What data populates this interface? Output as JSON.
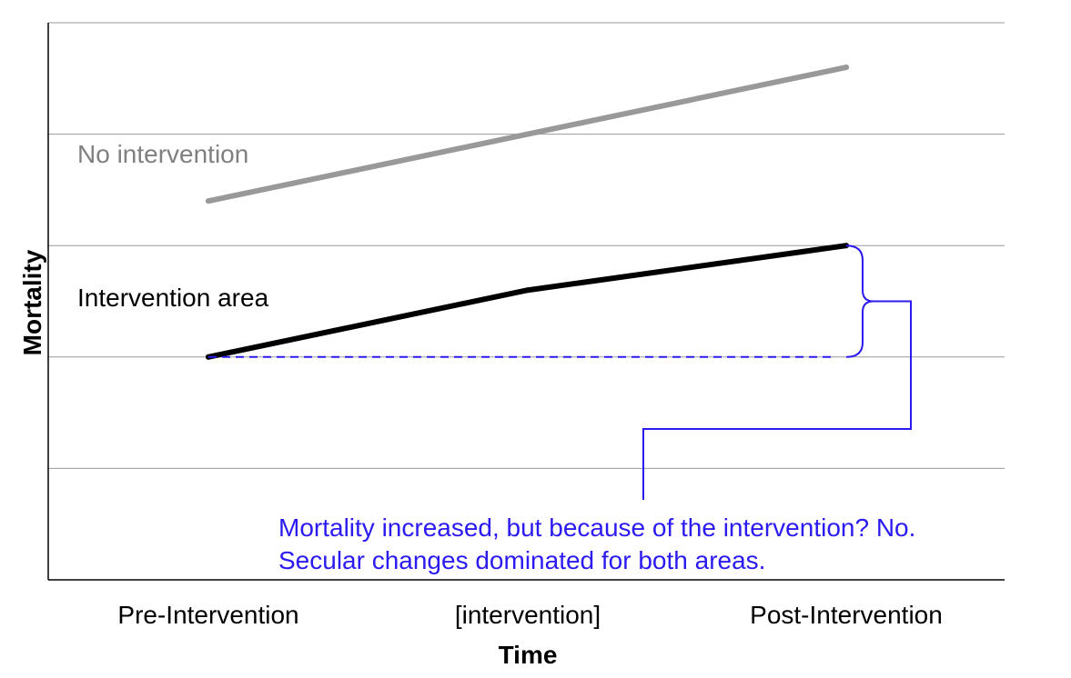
{
  "chart_data": {
    "type": "line",
    "title": "",
    "xlabel": "Time",
    "ylabel": "Mortality",
    "categories": [
      "Pre-Intervention",
      "[intervention]",
      "Post-Intervention"
    ],
    "y_axis": {
      "ylim": [
        0,
        5
      ],
      "tick_step": 1,
      "tick_labels_shown": false
    },
    "grid": {
      "horizontal": true,
      "vertical": false
    },
    "legend": "none",
    "series": [
      {
        "name": "No intervention",
        "values": [
          3.4,
          4.0,
          4.6
        ],
        "color": "#999999"
      },
      {
        "name": "Intervention area",
        "values": [
          2.0,
          2.6,
          3.0
        ],
        "color": "#000000"
      }
    ],
    "annotation": {
      "color": "#2b1bf0",
      "baseline_value": 2.0,
      "baseline_from": "Pre-Intervention",
      "baseline_to": "Post-Intervention",
      "text_lines": [
        "Mortality increased, but because of the intervention? No.",
        "Secular changes dominated for both areas."
      ]
    }
  }
}
